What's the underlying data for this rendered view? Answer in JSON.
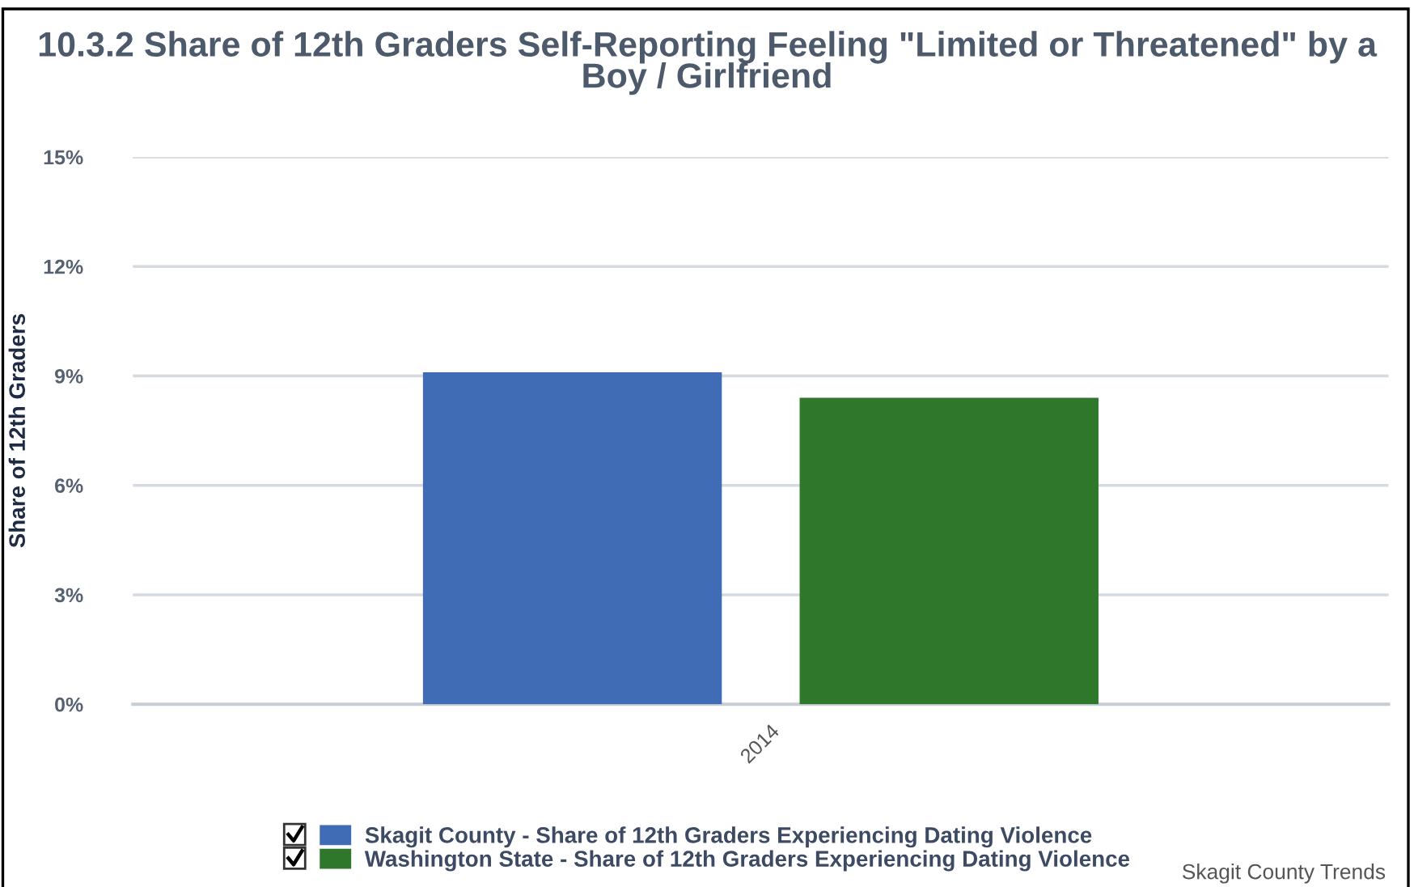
{
  "chart_data": {
    "type": "bar",
    "title": "10.3.2 Share of 12th Graders Self-Reporting Feeling \"Limited or Threatened\" by a Boy / Girlfriend",
    "ylabel": "Share of 12th Graders",
    "categories": [
      "2014"
    ],
    "series": [
      {
        "name": "Skagit County - Share of 12th Graders Experiencing Dating Violence",
        "color": "#406bb5",
        "values": [
          9.1
        ]
      },
      {
        "name": "Washington State - Share of 12th Graders Experiencing Dating Violence",
        "color": "#2e772b",
        "values": [
          8.4
        ]
      }
    ],
    "ylim": [
      0,
      15
    ],
    "yticks": [
      {
        "value": 0,
        "label": "0%"
      },
      {
        "value": 3,
        "label": "3%"
      },
      {
        "value": 6,
        "label": "6%"
      },
      {
        "value": 9,
        "label": "9%"
      },
      {
        "value": 12,
        "label": "12%"
      },
      {
        "value": 15,
        "label": "15%"
      }
    ],
    "grid": "y",
    "legend": "bottom",
    "annotations": [
      "Skagit County Trends"
    ]
  }
}
